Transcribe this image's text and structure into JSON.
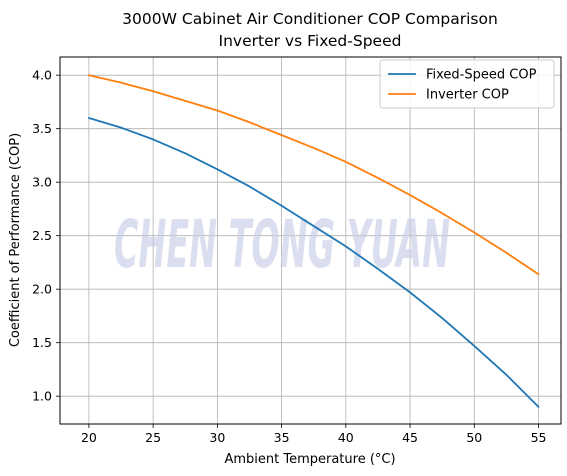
{
  "chart_data": {
    "type": "line",
    "title": "3000W Cabinet Air Conditioner COP Comparison",
    "subtitle": "Inverter vs Fixed-Speed",
    "xlabel": "Ambient Temperature (°C)",
    "ylabel": "Coefficient of Performance (COP)",
    "xlim": [
      17.75,
      56.75
    ],
    "ylim": [
      0.74,
      4.17
    ],
    "xticks": [
      20,
      25,
      30,
      35,
      40,
      45,
      50,
      55
    ],
    "yticks": [
      1.0,
      1.5,
      2.0,
      2.5,
      3.0,
      3.5,
      4.0
    ],
    "grid": true,
    "legend_position": "top-right",
    "x": [
      20,
      22.5,
      25,
      27.5,
      30,
      32.5,
      35,
      37.5,
      40,
      42.5,
      45,
      47.5,
      50,
      52.5,
      55
    ],
    "series": [
      {
        "name": "Fixed-Speed COP",
        "color": "#1f77b4",
        "values": [
          3.6,
          3.51,
          3.4,
          3.27,
          3.12,
          2.96,
          2.78,
          2.59,
          2.4,
          2.19,
          1.97,
          1.73,
          1.47,
          1.2,
          0.9
        ]
      },
      {
        "name": "Inverter COP",
        "color": "#ff7f0e",
        "values": [
          4.0,
          3.93,
          3.85,
          3.76,
          3.67,
          3.56,
          3.44,
          3.32,
          3.19,
          3.04,
          2.88,
          2.71,
          2.53,
          2.34,
          2.14
        ]
      }
    ]
  },
  "watermark": {
    "text": "CHEN TONG YUAN"
  }
}
